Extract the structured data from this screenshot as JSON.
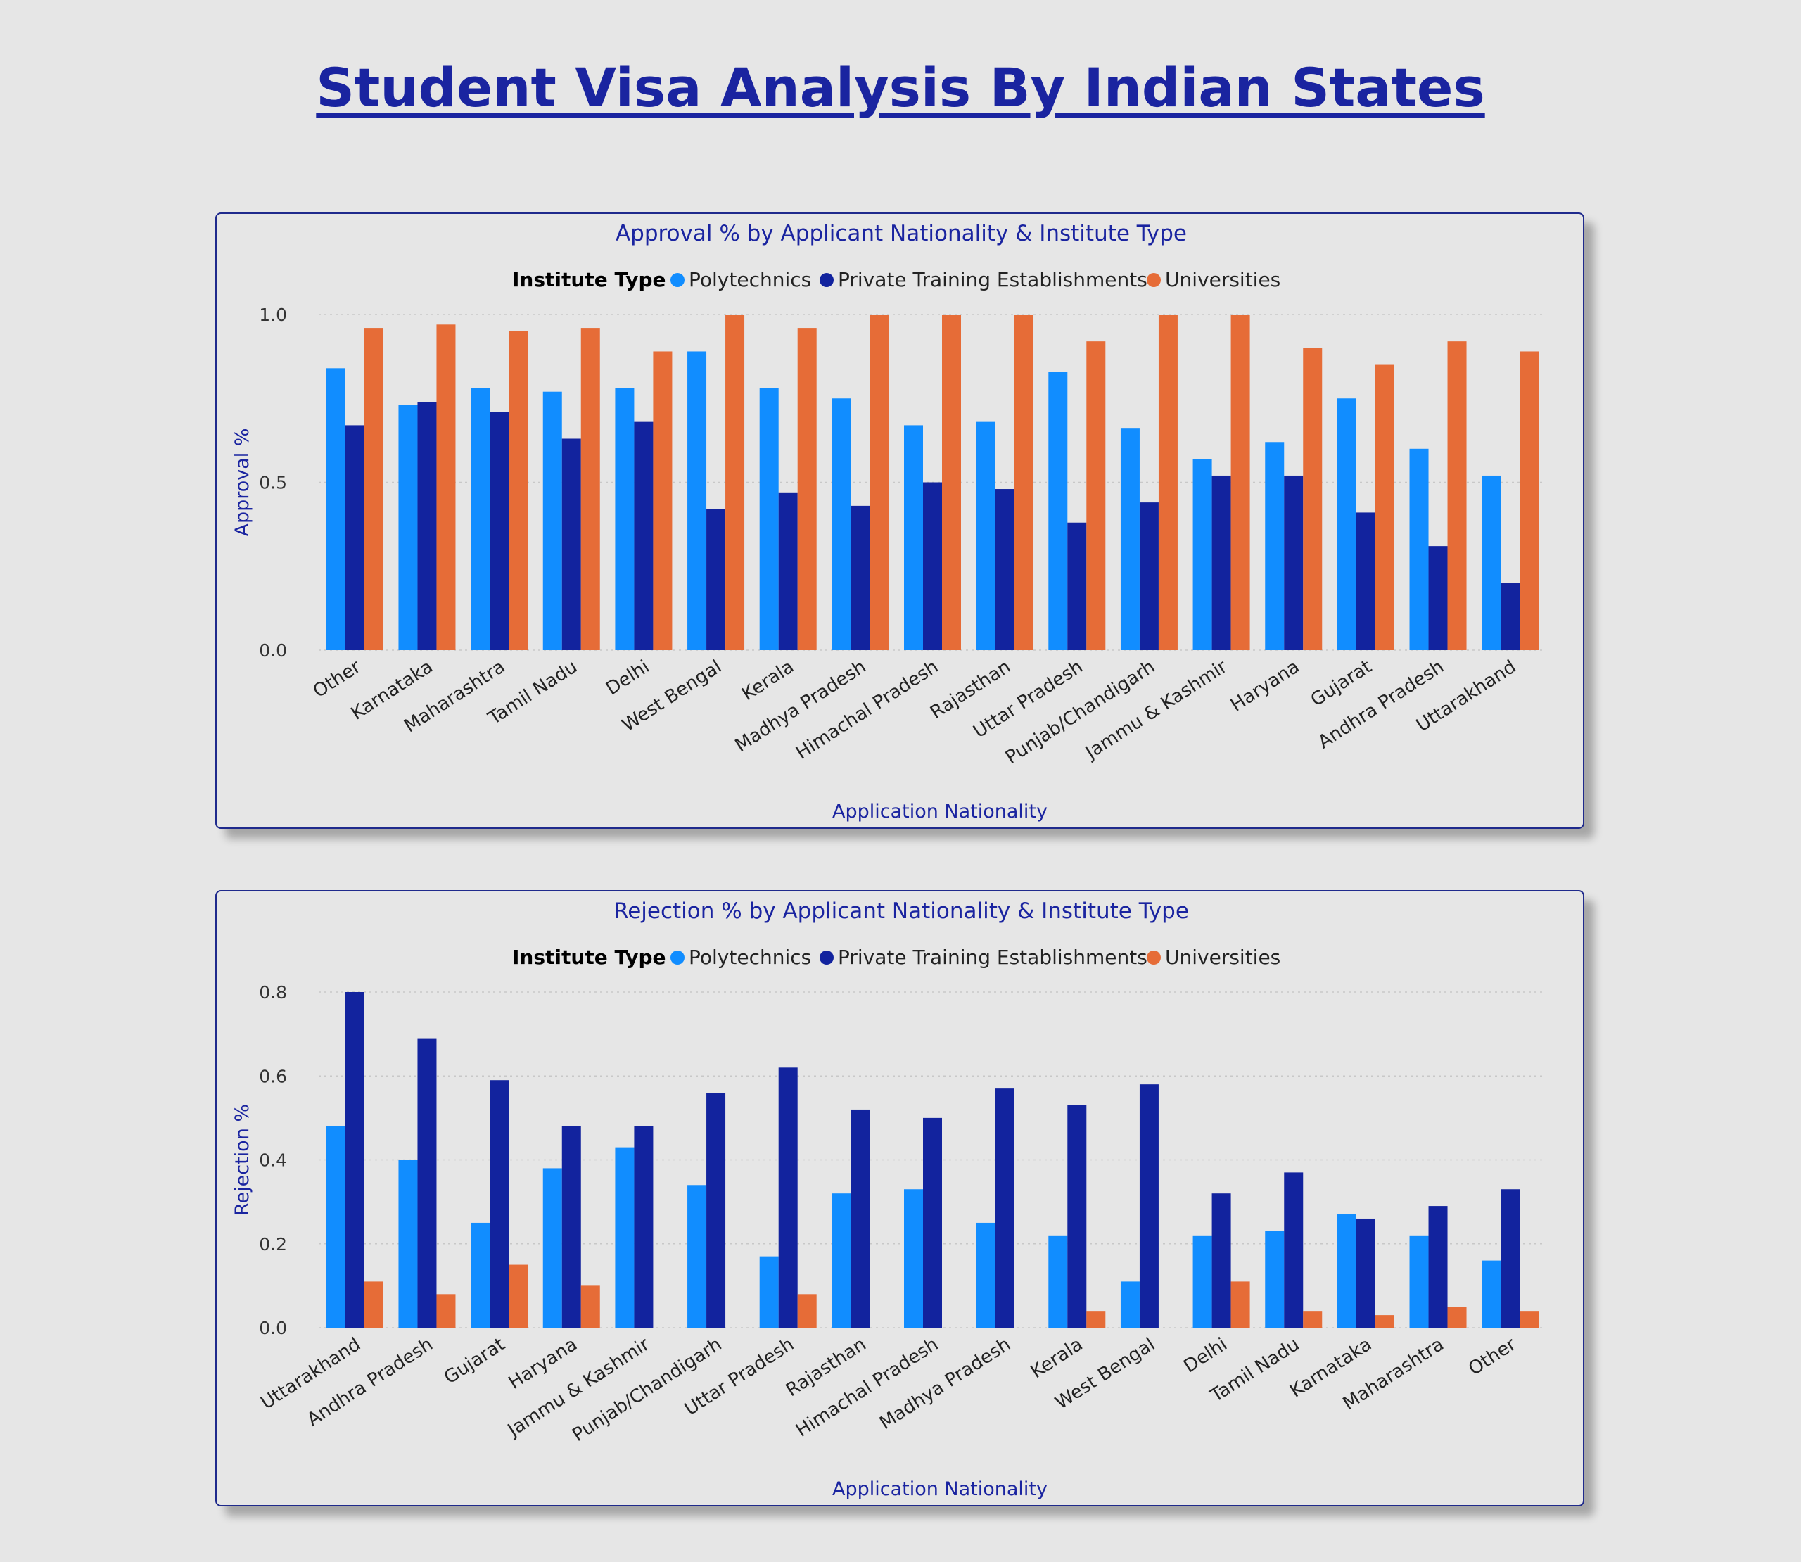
{
  "page": {
    "title": "Student Visa Analysis By Indian States"
  },
  "colors": {
    "polytechnics": "#118DFF",
    "private_training": "#12239E",
    "universities": "#E66C37",
    "title": "#1a24a0",
    "axis_text": "#333333",
    "grid": "#c8c8c8"
  },
  "chart_data": [
    {
      "type": "bar",
      "title": "Approval % by Applicant Nationality & Institute Type",
      "legend_title": "Institute Type",
      "legend_position": "top-center",
      "xlabel": "Application Nationality",
      "ylabel": "Approval %",
      "ylim": [
        0,
        1
      ],
      "yticks": [
        "0.0",
        "0.5",
        "1.0"
      ],
      "yticks_values": [
        0,
        0.5,
        1.0
      ],
      "grid": true,
      "categories": [
        "Other",
        "Karnataka",
        "Maharashtra",
        "Tamil Nadu",
        "Delhi",
        "West Bengal",
        "Kerala",
        "Madhya Pradesh",
        "Himachal Pradesh",
        "Rajasthan",
        "Uttar Pradesh",
        "Punjab/Chandigarh",
        "Jammu & Kashmir",
        "Haryana",
        "Gujarat",
        "Andhra Pradesh",
        "Uttarakhand"
      ],
      "series": [
        {
          "name": "Polytechnics",
          "values": [
            0.84,
            0.73,
            0.78,
            0.77,
            0.78,
            0.89,
            0.78,
            0.75,
            0.67,
            0.68,
            0.83,
            0.66,
            0.57,
            0.62,
            0.75,
            0.6,
            0.52
          ]
        },
        {
          "name": "Private Training Establishments",
          "values": [
            0.67,
            0.74,
            0.71,
            0.63,
            0.68,
            0.42,
            0.47,
            0.43,
            0.5,
            0.48,
            0.38,
            0.44,
            0.52,
            0.52,
            0.41,
            0.31,
            0.2
          ]
        },
        {
          "name": "Universities",
          "values": [
            0.96,
            0.97,
            0.95,
            0.96,
            0.89,
            1.0,
            0.96,
            1.0,
            1.0,
            1.0,
            0.92,
            1.0,
            1.0,
            0.9,
            0.85,
            0.92,
            0.89
          ]
        }
      ]
    },
    {
      "type": "bar",
      "title": "Rejection % by Applicant Nationality & Institute Type",
      "legend_title": "Institute Type",
      "legend_position": "top-center",
      "xlabel": "Application Nationality",
      "ylabel": "Rejection %",
      "ylim": [
        0,
        0.8
      ],
      "yticks": [
        "0.0",
        "0.2",
        "0.4",
        "0.6",
        "0.8"
      ],
      "yticks_values": [
        0,
        0.2,
        0.4,
        0.6,
        0.8
      ],
      "grid": true,
      "categories": [
        "Uttarakhand",
        "Andhra Pradesh",
        "Gujarat",
        "Haryana",
        "Jammu & Kashmir",
        "Punjab/Chandigarh",
        "Uttar Pradesh",
        "Rajasthan",
        "Himachal Pradesh",
        "Madhya Pradesh",
        "Kerala",
        "West Bengal",
        "Delhi",
        "Tamil Nadu",
        "Karnataka",
        "Maharashtra",
        "Other"
      ],
      "series": [
        {
          "name": "Polytechnics",
          "values": [
            0.48,
            0.4,
            0.25,
            0.38,
            0.43,
            0.34,
            0.17,
            0.32,
            0.33,
            0.25,
            0.22,
            0.11,
            0.22,
            0.23,
            0.27,
            0.22,
            0.16
          ]
        },
        {
          "name": "Private Training Establishments",
          "values": [
            0.8,
            0.69,
            0.59,
            0.48,
            0.48,
            0.56,
            0.62,
            0.52,
            0.5,
            0.57,
            0.53,
            0.58,
            0.32,
            0.37,
            0.26,
            0.29,
            0.33
          ]
        },
        {
          "name": "Universities",
          "values": [
            0.11,
            0.08,
            0.15,
            0.1,
            0,
            0,
            0.08,
            0,
            0,
            0,
            0.04,
            0,
            0.11,
            0.04,
            0.03,
            0.05,
            0.04
          ]
        }
      ]
    }
  ]
}
